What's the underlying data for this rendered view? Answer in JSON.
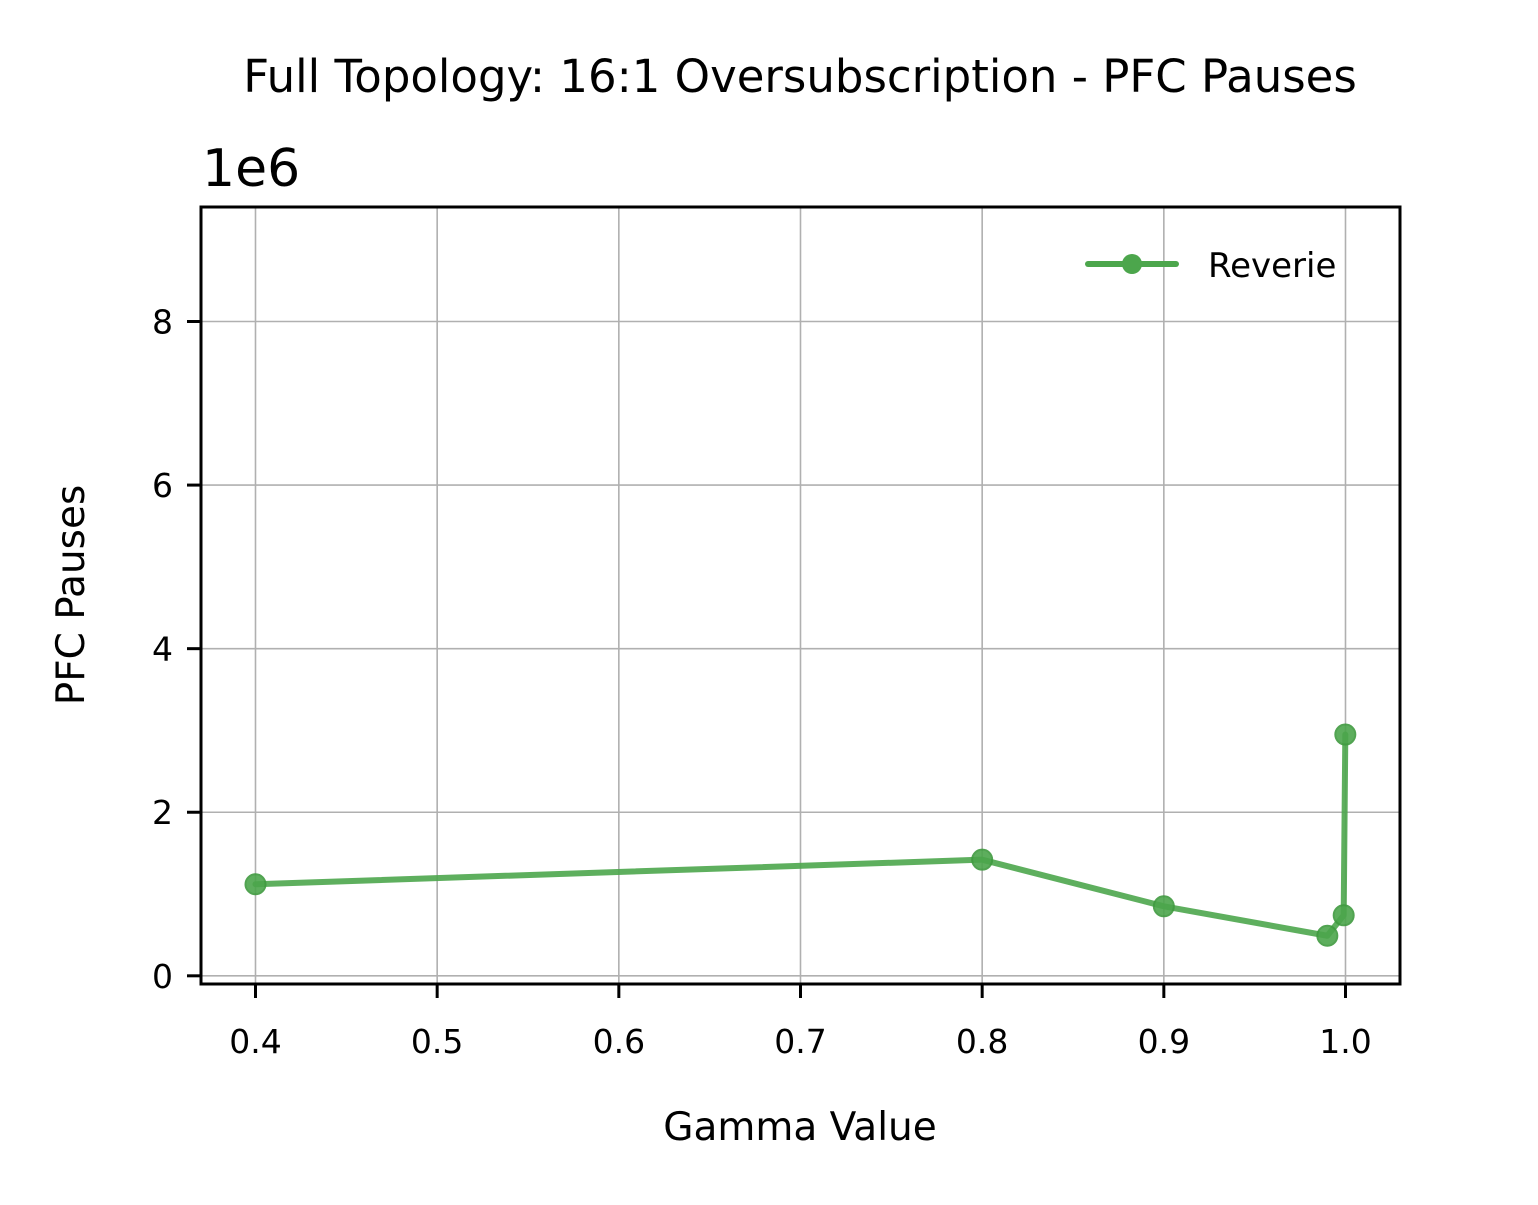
{
  "chart_data": {
    "type": "line",
    "title": "Full Topology: 16:1 Oversubscription - PFC Pauses",
    "xlabel": "Gamma Value",
    "ylabel": "PFC Pauses",
    "y_offset_label": "1e6",
    "xlim": [
      0.37,
      1.03
    ],
    "ylim": [
      -0.1,
      9.4
    ],
    "x_ticks": [
      0.4,
      0.5,
      0.6,
      0.7,
      0.8,
      0.9,
      1.0
    ],
    "x_tick_labels": [
      "0.4",
      "0.5",
      "0.6",
      "0.7",
      "0.8",
      "0.9",
      "1.0"
    ],
    "y_ticks": [
      0,
      2,
      4,
      6,
      8
    ],
    "y_tick_labels": [
      "0",
      "2",
      "4",
      "6",
      "8"
    ],
    "grid": true,
    "legend_position": "upper right",
    "series": [
      {
        "name": "Reverie",
        "color": "#4ca64c",
        "marker": "circle",
        "x": [
          0.4,
          0.8,
          0.9,
          0.99,
          0.999,
          0.9999
        ],
        "y": [
          1.12,
          1.42,
          0.85,
          0.49,
          0.74,
          2.95
        ]
      }
    ]
  }
}
